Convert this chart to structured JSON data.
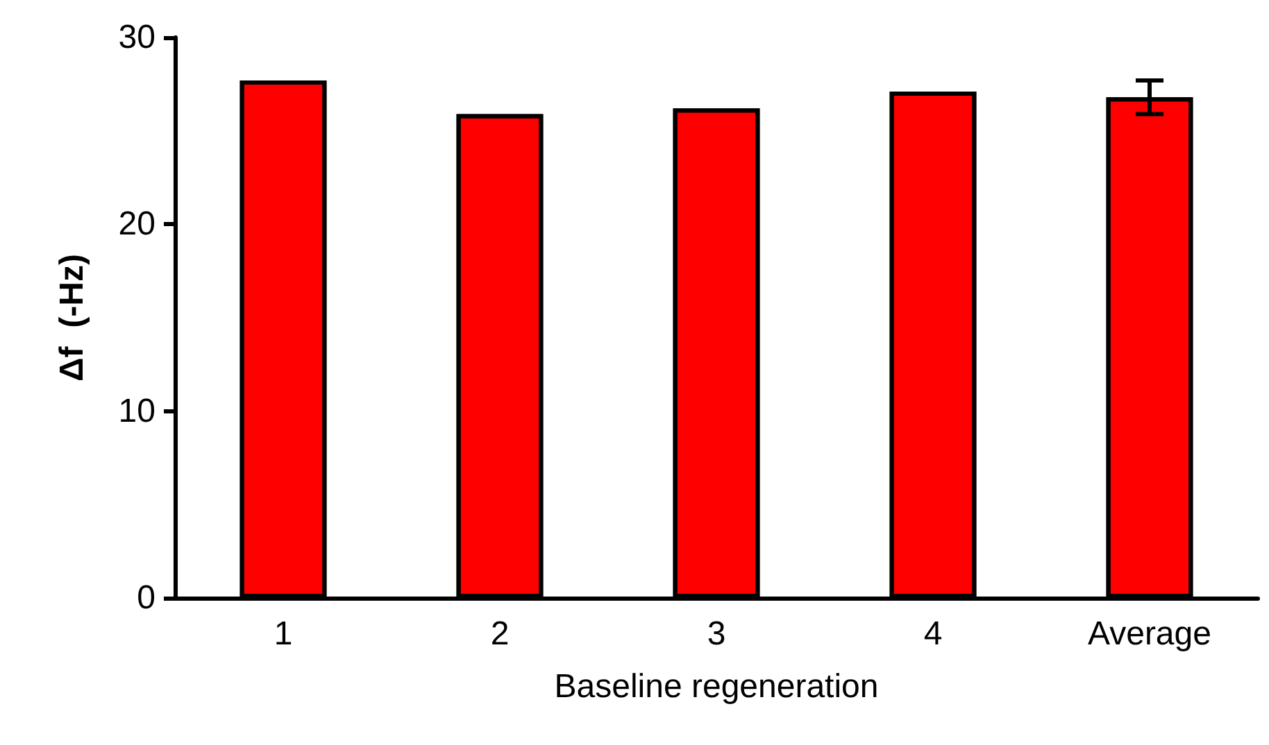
{
  "chart_data": {
    "type": "bar",
    "xlabel": "Baseline regeneration",
    "ylabel": "Δf  (-Hz)",
    "categories": [
      "1",
      "2",
      "3",
      "4",
      "Average"
    ],
    "values": [
      27.7,
      25.9,
      26.2,
      27.1,
      26.8
    ],
    "errors": [
      null,
      null,
      null,
      null,
      0.9
    ],
    "color": "#ff0000",
    "ylim": [
      0,
      30
    ],
    "yticks": [
      0,
      10,
      20,
      30
    ],
    "grid": false
  }
}
